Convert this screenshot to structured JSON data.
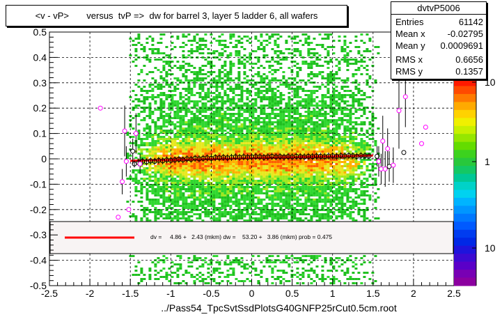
{
  "title": "<v - vP>       versus  tvP =>  dw for barrel 3, layer 5 ladder 6, all wafers",
  "stats": {
    "name": "dvtvP5006",
    "rows": [
      {
        "label": "Entries",
        "value": "61142"
      },
      {
        "label": "Mean x",
        "value": "-0.02795"
      },
      {
        "label": "Mean y",
        "value": "0.0009691"
      },
      {
        "label": "RMS x",
        "value": "0.6656"
      },
      {
        "label": "RMS y",
        "value": "0.1357"
      }
    ]
  },
  "x_axis_title": "../Pass54_TpcSvtSsdPlotsG40GNFP25rCut0.5cm.root",
  "fit_legend": "dv =     4.86 +   2.43 (mkm) dw =    53.20 +   3.86 (mkm) prob = 0.475",
  "colors": {
    "fit_line": "#ff0000",
    "profile_marker": "#000000",
    "sparse_marker": "#ff00ff",
    "frame": "#000000",
    "legend_bg": "#f8f4f4"
  },
  "chart_data": {
    "type": "heatmap",
    "title": "<v - vP>       versus  tvP =>  dw for barrel 3, layer 5 ladder 6, all wafers",
    "xlabel": "../Pass54_TpcSvtSsdPlotsG40GNFP25rCut0.5cm.root",
    "ylabel": "",
    "xlim": [
      -2.5,
      2.5
    ],
    "ylim": [
      -0.5,
      0.5
    ],
    "x_ticks": [
      "-2.5",
      "-2",
      "-1.5",
      "-1",
      "-0.5",
      "0",
      "0.5",
      "1",
      "1.5",
      "2",
      "2.5"
    ],
    "y_ticks": [
      "-0.5",
      "-0.4",
      "-0.3",
      "-0.2",
      "-0.1",
      "0",
      "0.1",
      "0.2",
      "0.3",
      "0.4",
      "0.5"
    ],
    "z_ticks": [
      "10",
      "1",
      "10"
    ],
    "grid": true,
    "log_z": true,
    "density": {
      "x_range": [
        -1.55,
        1.55
      ],
      "core_y": 0.0,
      "core_halfwidth": 0.05,
      "spread_y": 0.45
    },
    "fit": {
      "x": [
        -1.5,
        1.5
      ],
      "y": [
        -0.008,
        0.013
      ]
    },
    "profile": {
      "x": [
        -1.45,
        -1.4,
        -1.35,
        -1.3,
        -1.25,
        -1.2,
        -1.15,
        -1.1,
        -1.05,
        -1.0,
        -0.95,
        -0.9,
        -0.85,
        -0.8,
        -0.75,
        -0.7,
        -0.65,
        -0.6,
        -0.55,
        -0.5,
        -0.45,
        -0.4,
        -0.35,
        -0.3,
        -0.25,
        -0.2,
        -0.15,
        -0.1,
        -0.05,
        0.0,
        0.05,
        0.1,
        0.15,
        0.2,
        0.25,
        0.3,
        0.35,
        0.4,
        0.45,
        0.5,
        0.55,
        0.6,
        0.65,
        0.7,
        0.75,
        0.8,
        0.85,
        0.9,
        0.95,
        1.0,
        1.05,
        1.1,
        1.15,
        1.2,
        1.25,
        1.3,
        1.35,
        1.4,
        1.45
      ],
      "y": [
        -0.02,
        -0.015,
        -0.01,
        -0.012,
        -0.008,
        -0.01,
        -0.006,
        -0.008,
        -0.004,
        -0.006,
        -0.004,
        -0.002,
        -0.004,
        0.0,
        -0.002,
        0.002,
        0.0,
        0.002,
        0.004,
        0.002,
        0.005,
        0.004,
        0.006,
        0.004,
        0.006,
        0.008,
        0.006,
        0.008,
        0.006,
        0.008,
        0.009,
        0.008,
        0.006,
        0.008,
        0.01,
        0.008,
        0.009,
        0.007,
        0.009,
        0.008,
        0.01,
        0.009,
        0.008,
        0.01,
        0.009,
        0.011,
        0.01,
        0.009,
        0.011,
        0.012,
        0.01,
        0.012,
        0.011,
        0.013,
        0.012,
        0.01,
        0.013,
        0.012,
        0.011
      ]
    },
    "sparse_points": {
      "x": [
        -1.87,
        -1.65,
        -1.6,
        -1.57,
        -1.55,
        -1.52,
        -1.47,
        -1.43,
        -1.38,
        1.55,
        1.57,
        1.6,
        1.62,
        1.65,
        1.68,
        1.7,
        1.75,
        1.82,
        1.88,
        1.9,
        2.1,
        2.15
      ],
      "y": [
        0.2,
        -0.23,
        -0.09,
        0.11,
        -0.01,
        -0.2,
        0.03,
        0.1,
        -0.02,
        0.01,
        -0.01,
        -0.04,
        0.07,
        -0.04,
        0.04,
        -0.03,
        -0.025,
        0.19,
        0.025,
        0.245,
        0.06,
        0.125
      ],
      "err": [
        0,
        0,
        0.05,
        0.1,
        0.06,
        0,
        0.05,
        0.08,
        0.04,
        0.04,
        0.06,
        0.06,
        0.1,
        0.07,
        0.08,
        0.06,
        0.07,
        0.15,
        0,
        0.12,
        0,
        0
      ]
    }
  }
}
